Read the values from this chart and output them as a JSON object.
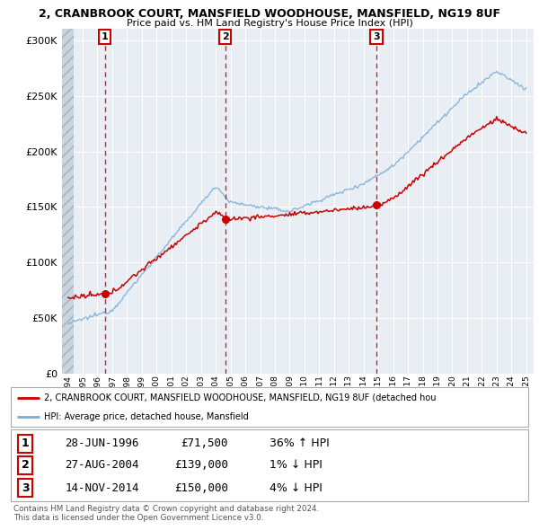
{
  "title_line1": "2, CRANBROOK COURT, MANSFIELD WOODHOUSE, MANSFIELD, NG19 8UF",
  "title_line2": "Price paid vs. HM Land Registry's House Price Index (HPI)",
  "sale_dates_float": [
    1996.495,
    2004.646,
    2014.869
  ],
  "sale_prices": [
    71500,
    139000,
    150000
  ],
  "sale_labels": [
    "1",
    "2",
    "3"
  ],
  "sale_dates_str": [
    "28-JUN-1996",
    "27-AUG-2004",
    "14-NOV-2014"
  ],
  "sale_prices_str": [
    "£71,500",
    "£139,000",
    "£150,000"
  ],
  "sale_hpi_pcts": [
    "36% ↑ HPI",
    "1% ↓ HPI",
    "4% ↓ HPI"
  ],
  "red_line_color": "#cc0000",
  "blue_line_color": "#7aaed6",
  "ylim": [
    0,
    310000
  ],
  "yticks": [
    0,
    50000,
    100000,
    150000,
    200000,
    250000,
    300000
  ],
  "plot_bg_color": "#e8eef4",
  "background_color": "#ffffff",
  "legend_line1": "2, CRANBROOK COURT, MANSFIELD WOODHOUSE, MANSFIELD, NG19 8UF (detached hou",
  "legend_line2": "HPI: Average price, detached house, Mansfield",
  "footer_line1": "Contains HM Land Registry data © Crown copyright and database right 2024.",
  "footer_line2": "This data is licensed under the Open Government Licence v3.0.",
  "table_data": [
    [
      "1",
      "28-JUN-1996",
      "£71,500",
      "36% ↑ HPI"
    ],
    [
      "2",
      "27-AUG-2004",
      "£139,000",
      "1% ↓ HPI"
    ],
    [
      "3",
      "14-NOV-2014",
      "£150,000",
      "4% ↓ HPI"
    ]
  ]
}
